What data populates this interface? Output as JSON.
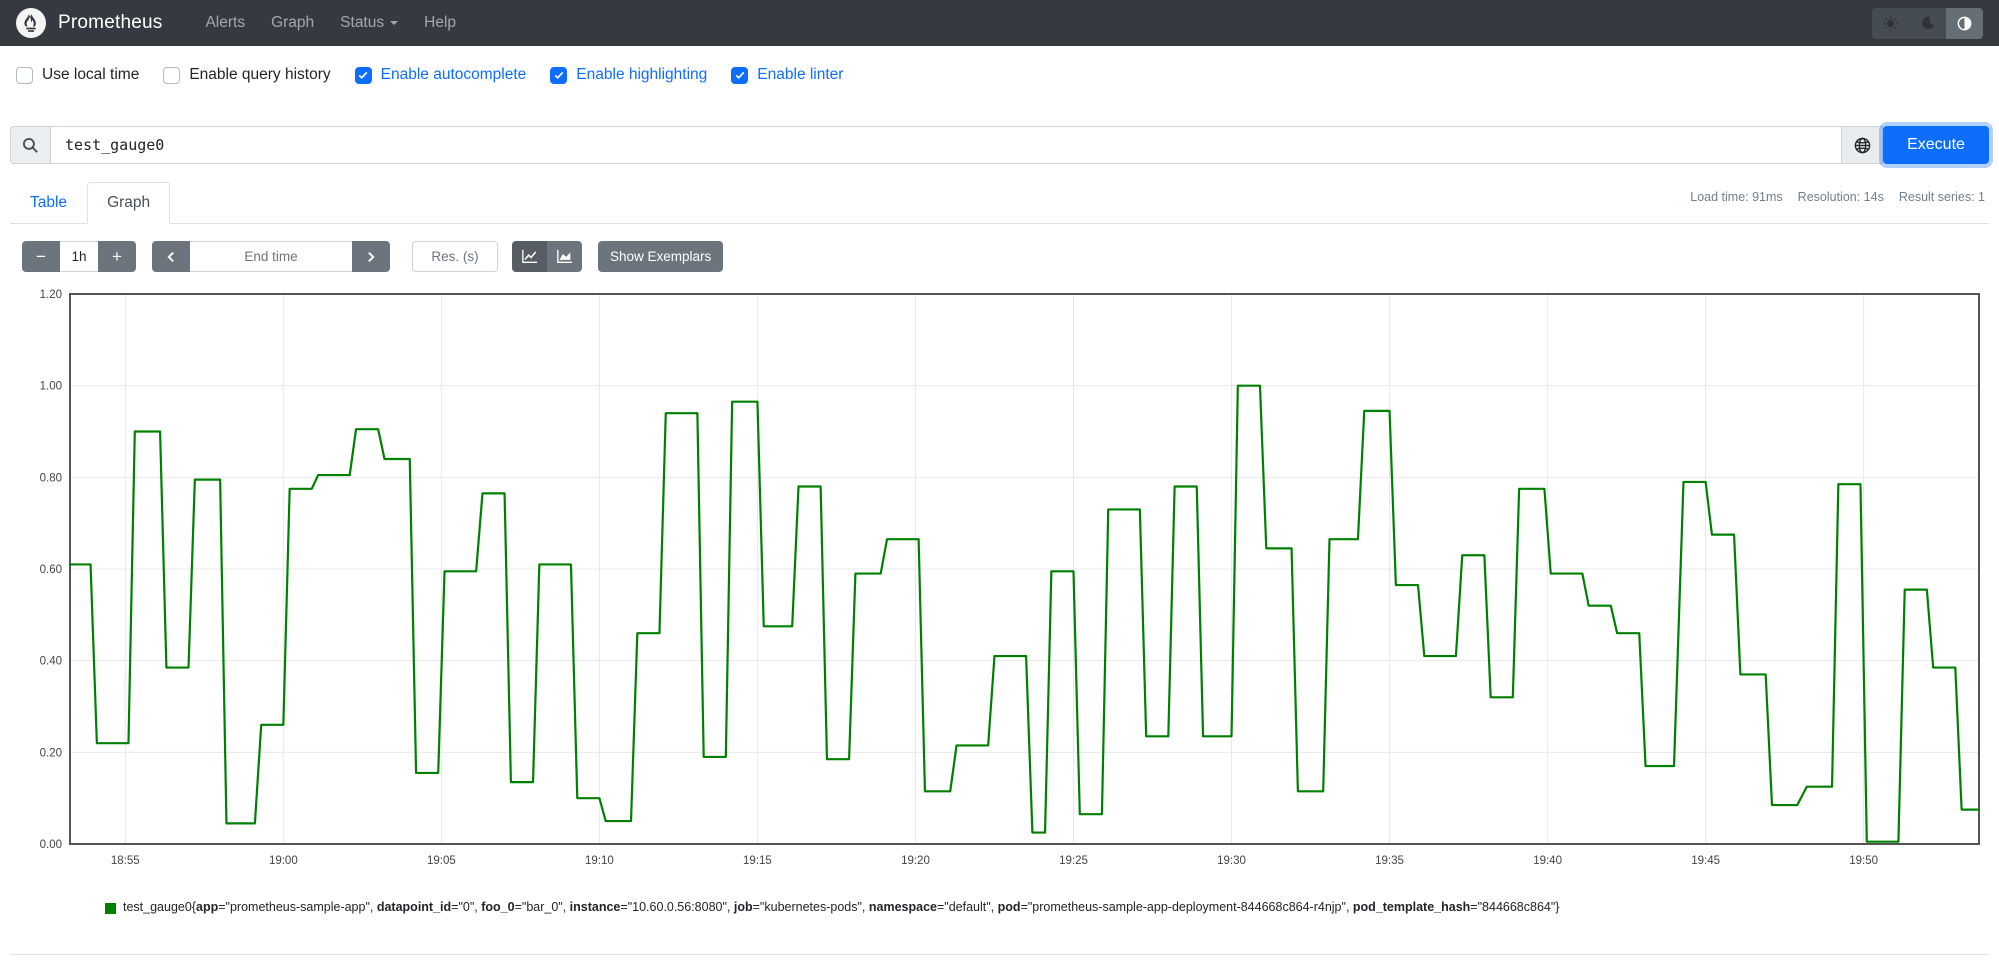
{
  "navbar": {
    "brand": "Prometheus",
    "links": [
      {
        "label": "Alerts"
      },
      {
        "label": "Graph"
      },
      {
        "label": "Status"
      },
      {
        "label": "Help"
      }
    ],
    "theme_buttons": [
      {
        "icon": "sun-icon",
        "active": false
      },
      {
        "icon": "moon-icon",
        "active": false
      },
      {
        "icon": "half-circle-icon",
        "active": true
      }
    ]
  },
  "options": [
    {
      "label": "Use local time",
      "checked": false
    },
    {
      "label": "Enable query history",
      "checked": false
    },
    {
      "label": "Enable autocomplete",
      "checked": true
    },
    {
      "label": "Enable highlighting",
      "checked": true
    },
    {
      "label": "Enable linter",
      "checked": true
    }
  ],
  "query": {
    "value": "test_gauge0",
    "execute_label": "Execute"
  },
  "tabs": [
    {
      "label": "Table",
      "active": false
    },
    {
      "label": "Graph",
      "active": true
    }
  ],
  "stats": {
    "load_time": "Load time: 91ms",
    "resolution": "Resolution: 14s",
    "result_series": "Result series: 1"
  },
  "graph_controls": {
    "range_value": "1h",
    "minus_label": "−",
    "plus_label": "+",
    "end_time_placeholder": "End time",
    "res_placeholder": "Res. (s)",
    "show_exemplars_label": "Show Exemplars"
  },
  "chart_data": {
    "type": "line",
    "subtype": "step-gauge",
    "title": "",
    "xlabel": "",
    "ylabel": "",
    "grid": true,
    "legend_position": "bottom",
    "value_axis": {
      "min": 0,
      "max": 1.2,
      "ticks": [
        {
          "v": 0.0,
          "label": "0.00"
        },
        {
          "v": 0.2,
          "label": "0.20"
        },
        {
          "v": 0.4,
          "label": "0.40"
        },
        {
          "v": 0.6,
          "label": "0.60"
        },
        {
          "v": 0.8,
          "label": "0.80"
        },
        {
          "v": 1.0,
          "label": "1.00"
        },
        {
          "v": 1.2,
          "label": "1.20"
        }
      ]
    },
    "time_axis": {
      "unit": "minutes after 18:53",
      "window": [
        0.25,
        60.65
      ],
      "ticks": [
        {
          "t": 2,
          "label": "18:55"
        },
        {
          "t": 7,
          "label": "19:00"
        },
        {
          "t": 12,
          "label": "19:05"
        },
        {
          "t": 17,
          "label": "19:10"
        },
        {
          "t": 22,
          "label": "19:15"
        },
        {
          "t": 27,
          "label": "19:20"
        },
        {
          "t": 32,
          "label": "19:25"
        },
        {
          "t": 37,
          "label": "19:30"
        },
        {
          "t": 42,
          "label": "19:35"
        },
        {
          "t": 47,
          "label": "19:40"
        },
        {
          "t": 52,
          "label": "19:45"
        },
        {
          "t": 57,
          "label": "19:50"
        }
      ]
    },
    "series": [
      {
        "name": "test_gauge0",
        "color": "#008000",
        "segments": [
          [
            0.25,
            0.9,
            0.61
          ],
          [
            1.1,
            2.1,
            0.22
          ],
          [
            2.3,
            3.1,
            0.9
          ],
          [
            3.3,
            4.0,
            0.385
          ],
          [
            4.2,
            5.0,
            0.795
          ],
          [
            5.2,
            6.1,
            0.045
          ],
          [
            6.3,
            7.0,
            0.26
          ],
          [
            7.2,
            7.9,
            0.775
          ],
          [
            8.1,
            9.1,
            0.805
          ],
          [
            9.3,
            10.0,
            0.905
          ],
          [
            10.2,
            11.0,
            0.84
          ],
          [
            11.2,
            11.9,
            0.155
          ],
          [
            12.1,
            13.1,
            0.595
          ],
          [
            13.3,
            14.0,
            0.765
          ],
          [
            14.2,
            14.9,
            0.135
          ],
          [
            15.1,
            16.1,
            0.61
          ],
          [
            16.3,
            17.0,
            0.1
          ],
          [
            17.2,
            18.0,
            0.05
          ],
          [
            18.2,
            18.9,
            0.46
          ],
          [
            19.1,
            20.1,
            0.94
          ],
          [
            20.3,
            21.0,
            0.19
          ],
          [
            21.2,
            22.0,
            0.965
          ],
          [
            22.2,
            23.1,
            0.475
          ],
          [
            23.3,
            24.0,
            0.78
          ],
          [
            24.2,
            24.9,
            0.185
          ],
          [
            25.1,
            25.9,
            0.59
          ],
          [
            26.1,
            27.1,
            0.665
          ],
          [
            27.3,
            28.1,
            0.115
          ],
          [
            28.3,
            29.3,
            0.215
          ],
          [
            29.5,
            30.5,
            0.41
          ],
          [
            30.7,
            31.1,
            0.025
          ],
          [
            31.3,
            32.0,
            0.595
          ],
          [
            32.2,
            32.9,
            0.065
          ],
          [
            33.1,
            34.1,
            0.73
          ],
          [
            34.3,
            35.0,
            0.235
          ],
          [
            35.2,
            35.9,
            0.78
          ],
          [
            36.1,
            37.0,
            0.235
          ],
          [
            37.2,
            37.9,
            1.0
          ],
          [
            38.1,
            38.9,
            0.645
          ],
          [
            39.1,
            39.9,
            0.115
          ],
          [
            40.1,
            41.0,
            0.665
          ],
          [
            41.2,
            42.0,
            0.945
          ],
          [
            42.2,
            42.9,
            0.565
          ],
          [
            43.1,
            44.1,
            0.41
          ],
          [
            44.3,
            45.0,
            0.63
          ],
          [
            45.2,
            45.9,
            0.32
          ],
          [
            46.1,
            46.9,
            0.775
          ],
          [
            47.1,
            48.1,
            0.59
          ],
          [
            48.3,
            49.0,
            0.52
          ],
          [
            49.2,
            49.9,
            0.46
          ],
          [
            50.1,
            51.0,
            0.17
          ],
          [
            51.3,
            52.0,
            0.79
          ],
          [
            52.2,
            52.9,
            0.675
          ],
          [
            53.1,
            53.9,
            0.37
          ],
          [
            54.1,
            54.9,
            0.085
          ],
          [
            55.2,
            56.0,
            0.125
          ],
          [
            56.2,
            56.9,
            0.785
          ],
          [
            57.1,
            58.1,
            0.005
          ],
          [
            58.3,
            59.0,
            0.555
          ],
          [
            59.2,
            59.9,
            0.385
          ],
          [
            60.1,
            60.8,
            0.075
          ]
        ]
      }
    ]
  },
  "legend": {
    "swatch_color": "#008000",
    "series_label": "test_gauge0",
    "labels": [
      {
        "name": "app",
        "value": "prometheus-sample-app"
      },
      {
        "name": "datapoint_id",
        "value": "0"
      },
      {
        "name": "foo_0",
        "value": "bar_0"
      },
      {
        "name": "instance",
        "value": "10.60.0.56:8080"
      },
      {
        "name": "job",
        "value": "kubernetes-pods"
      },
      {
        "name": "namespace",
        "value": "default"
      },
      {
        "name": "pod",
        "value": "prometheus-sample-app-deployment-844668c864-r4njp"
      },
      {
        "name": "pod_template_hash",
        "value": "844668c864"
      }
    ]
  }
}
